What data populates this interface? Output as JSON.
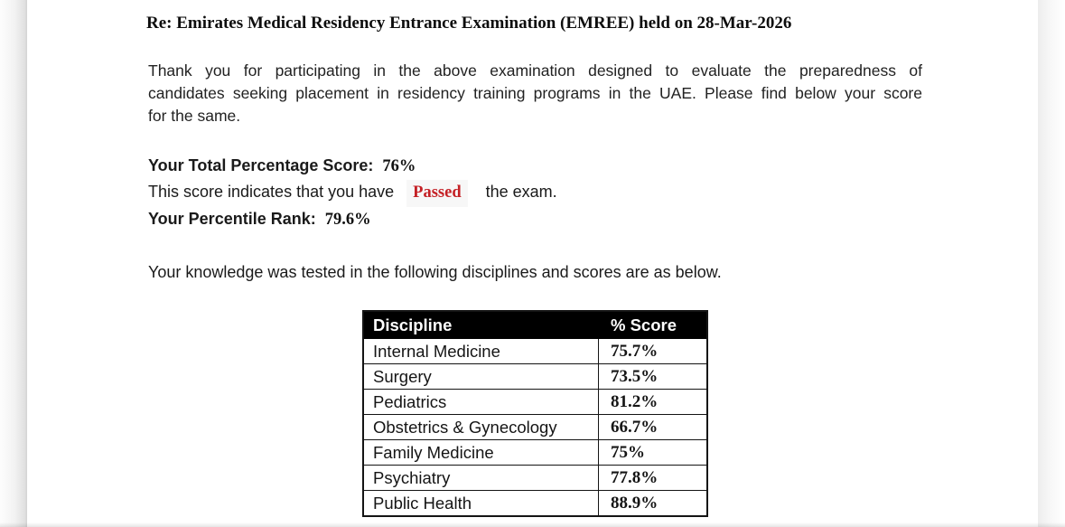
{
  "letter": {
    "subject": "Re: Emirates Medical Residency Entrance Examination (EMREE) held on 28-Mar-2026",
    "intro_lines": [
      "Thank you for participating in the above examination designed to evaluate the preparedness of",
      "candidates seeking placement in residency training programs in the UAE. Please find below your score",
      "for the same."
    ],
    "total_score": {
      "label": "Your Total Percentage Score:",
      "value": "76%"
    },
    "result": {
      "prefix": "This score indicates that you have",
      "value": "Passed",
      "suffix": "the exam.",
      "color": "#c42025"
    },
    "percentile": {
      "label": "Your Percentile Rank:",
      "value": "79.6%"
    },
    "table_intro": "Your knowledge was tested in the following disciplines and scores are as below."
  },
  "scores_table": {
    "headers": [
      "Discipline",
      "% Score"
    ],
    "rows": [
      {
        "discipline": "Internal Medicine",
        "score": "75.7%"
      },
      {
        "discipline": "Surgery",
        "score": "73.5%"
      },
      {
        "discipline": "Pediatrics",
        "score": "81.2%"
      },
      {
        "discipline": "Obstetrics & Gynecology",
        "score": "66.7%"
      },
      {
        "discipline": "Family Medicine",
        "score": "75%"
      },
      {
        "discipline": "Psychiatry",
        "score": "77.8%"
      },
      {
        "discipline": "Public Health",
        "score": "88.9%"
      }
    ],
    "header_bg": "#000000",
    "header_fg": "#ffffff",
    "border_color": "#141414"
  }
}
